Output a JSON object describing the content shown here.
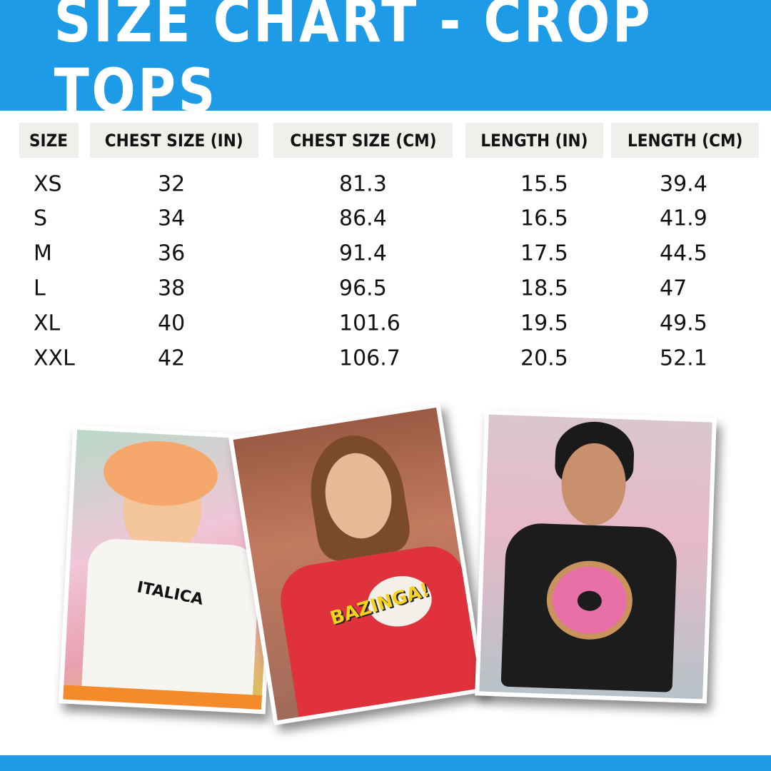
{
  "title": "SIZE CHART - CROP TOPS",
  "colors": {
    "brand": "#1e9be6",
    "header_cell": "#f0efeb"
  },
  "table": {
    "headers": [
      "SIZE",
      "CHEST SIZE (IN)",
      "CHEST SIZE (CM)",
      "LENGTH (IN)",
      "LENGTH (CM)"
    ],
    "rows": [
      [
        "XS",
        "32",
        "81.3",
        "15.5",
        "39.4"
      ],
      [
        "S",
        "34",
        "86.4",
        "16.5",
        "41.9"
      ],
      [
        "M",
        "36",
        "91.4",
        "17.5",
        "44.5"
      ],
      [
        "L",
        "38",
        "96.5",
        "18.5",
        "47"
      ],
      [
        "XL",
        "40",
        "101.6",
        "19.5",
        "49.5"
      ],
      [
        "XXL",
        "42",
        "106.7",
        "20.5",
        "52.1"
      ]
    ]
  },
  "photos": [
    {
      "shirt_color": "#f7f5f2",
      "print_text": "ITALICA"
    },
    {
      "shirt_color": "#e0323d",
      "print_text": "BAZINGA!"
    },
    {
      "shirt_color": "#1c1c1c",
      "print_text": ""
    }
  ]
}
